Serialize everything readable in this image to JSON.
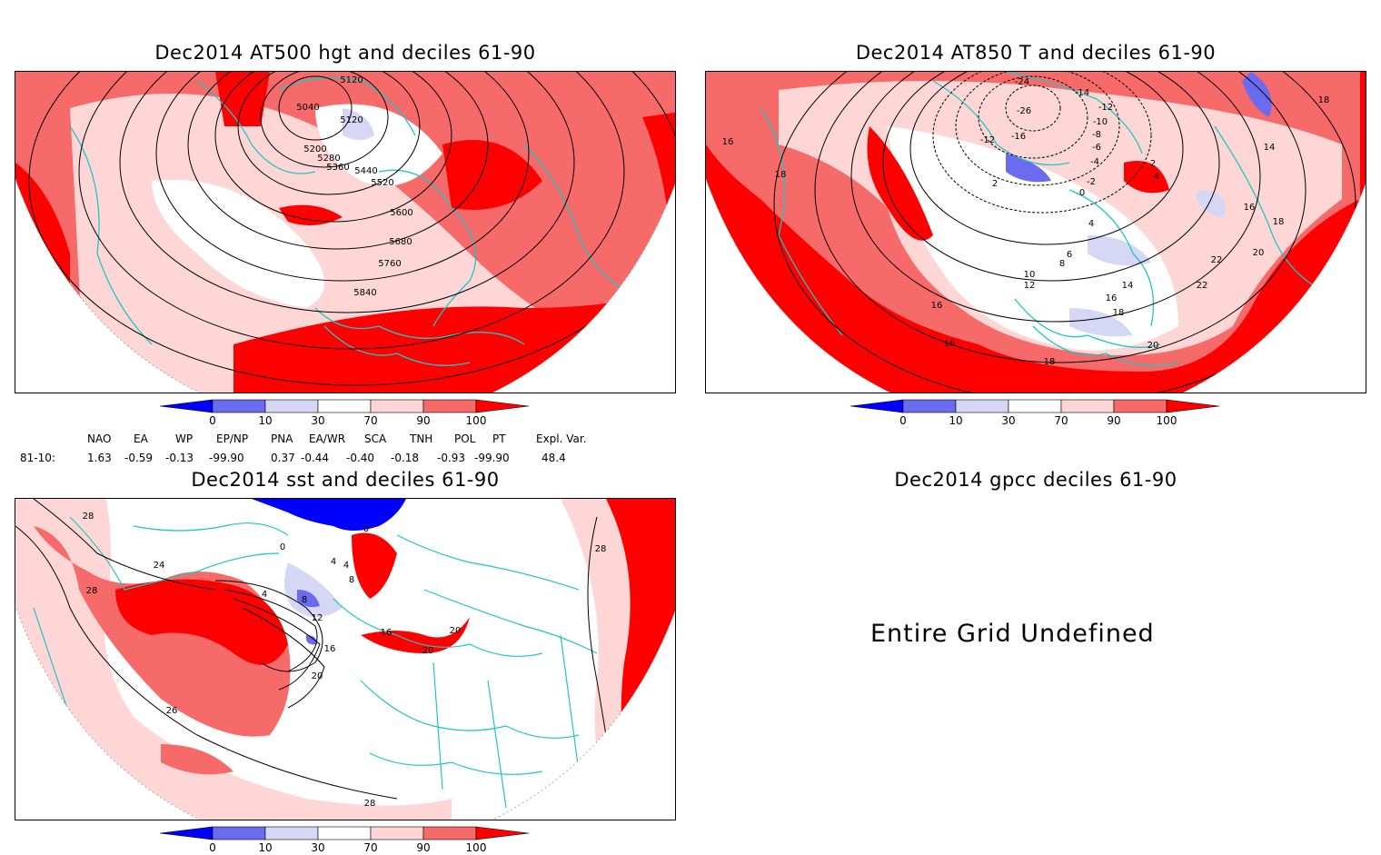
{
  "panels": {
    "top_left": {
      "title": "Dec2014 AT500 hgt and deciles 61-90",
      "contour_labels": [
        "5120",
        "5040",
        "5120",
        "5200",
        "5280",
        "5360",
        "5440",
        "5520",
        "5600",
        "5680",
        "5760",
        "5840"
      ]
    },
    "top_right": {
      "title": "Dec2014 AT850 T and deciles 61-90",
      "contour_labels": [
        "-24",
        "-26",
        "-14",
        "-12",
        "-10",
        "-8",
        "-6",
        "-4",
        "-12",
        "-16",
        "2",
        "4",
        "0",
        "-2",
        "2",
        "16",
        "18",
        "14",
        "16",
        "18",
        "20",
        "22",
        "4",
        "6",
        "8",
        "10",
        "12",
        "14",
        "16",
        "18",
        "16",
        "16",
        "18",
        "20",
        "22",
        "18"
      ]
    },
    "bottom_left": {
      "title": "Dec2014 sst and deciles 61-90",
      "contour_labels": [
        "28",
        "24",
        "28",
        "0",
        "0",
        "4",
        "4",
        "4",
        "8",
        "8",
        "12",
        "16",
        "20",
        "26",
        "16",
        "20",
        "20",
        "28",
        "28"
      ]
    },
    "bottom_right": {
      "title": "Dec2014 gpcc deciles 61-90",
      "message": "Entire Grid Undefined"
    }
  },
  "colorbar": {
    "ticks": [
      "0",
      "10",
      "30",
      "70",
      "90",
      "100"
    ],
    "colors": [
      "#0000ff",
      "#6b6bf0",
      "#d6d6f5",
      "#ffffff",
      "#ffd6d6",
      "#f76a6a",
      "#ff0000"
    ]
  },
  "indices": {
    "headers": [
      "NAO",
      "EA",
      "WP",
      "EP/NP",
      "PNA",
      "EA/WR",
      "SCA",
      "TNH",
      "POL",
      "PT",
      "Expl. Var."
    ],
    "row_label": "81-10:",
    "values": [
      "1.63",
      "-0.59",
      "-0.13",
      "-99.90",
      "0.37",
      "-0.44",
      "-0.40",
      "-0.18",
      "-0.93",
      "-99.90",
      "48.4"
    ]
  },
  "map_colors": {
    "coast": "#1fc6c6",
    "strong_high": "#ff0000",
    "high": "#f76a6a",
    "mid_high": "#ffd6d6",
    "mid_low": "#d6d6f5",
    "low": "#6b6bf0",
    "strong_low": "#0000ff"
  }
}
